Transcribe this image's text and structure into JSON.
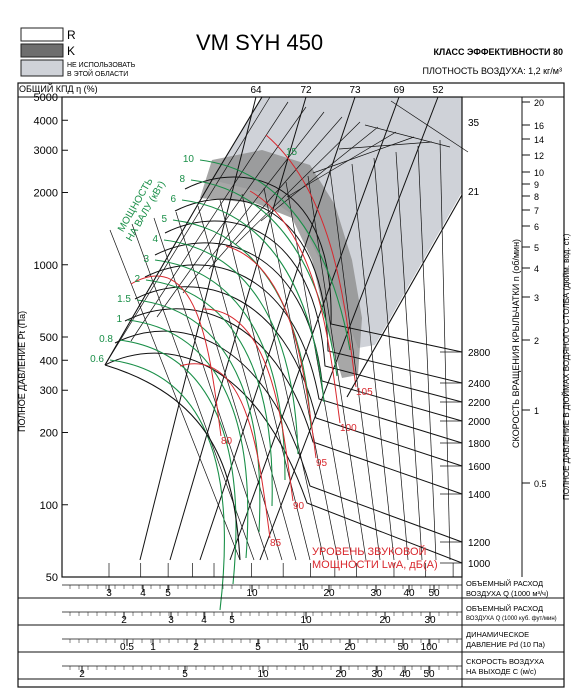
{
  "title": "VM SYH 450",
  "efficiency_class": "КЛАСС ЭФФЕКТИВНОСТИ 80",
  "air_density": "ПЛОТНОСТЬ ВОЗДУХА: 1,2 кг/м³",
  "legend": {
    "r_label": "R",
    "k_label": "K",
    "noarea_line1": "НЕ ИСПОЛЬЗОВАТЬ",
    "noarea_line2": "В ЭТОЙ ОБЛАСТИ",
    "colors": {
      "r_fill": "#ffffff",
      "k_fill": "#6e6e6e",
      "noarea_fill": "#cfd2d8"
    }
  },
  "labels": {
    "efficiency": "ОБЩИЙ КПД η (%)",
    "pressure_axis": "ПОЛНОЕ ДАВЛЕНИЕ Pt (Па)",
    "speed_axis": "СКОРОСТЬ ВРАЩЕНИЯ КРЫЛЬЧАТКИ n (об/мин)",
    "inch_axis": "ПОЛНОЕ ДАВЛЕНИЕ В ДЮЙМАХ ВОДЯНОГО СТОЛБА (дюйм. вод. ст.)",
    "power": "МОЩНОСТЬ НА ВАЛУ (кВт)",
    "power_line1": "МОЩНОСТЬ",
    "power_line2": "НА ВАЛУ (кВт)",
    "noise_line1": "УРОВЕНЬ ЗВУКОВОЙ",
    "noise_line2": "МОЩНОСТИ LwA, дБ(А)",
    "flow_m3h_line1": "ОБЪЕМНЫЙ РАСХОД",
    "flow_m3h_line2": "ВОЗДУХА Q (1000 м³/ч)",
    "flow_cfm_line1": "ОБЪЕМНЫЙ РАСХОД",
    "flow_cfm_line2": "ВОЗДУХА Q (1000 куб. фут/мин)",
    "dyn_line1": "ДИНАМИЧЕСКОЕ",
    "dyn_line2": "ДАВЛЕНИЕ Pd (10 Па)",
    "vel_line1": "СКОРОСТЬ ВОЗДУХА",
    "vel_line2": "НА ВЫХОДЕ C (м/с)"
  },
  "chart_data": {
    "type": "line",
    "x_scale": "log",
    "y_scale": "log",
    "x_label": "ОБЪЕМНЫЙ РАСХОД ВОЗДУХА Q (1000 м³/ч)",
    "y_label": "ПОЛНОЕ ДАВЛЕНИЕ Pt (Па)",
    "xlim": [
      2,
      60
    ],
    "ylim": [
      50,
      5000
    ],
    "y_ticks": [
      50,
      100,
      200,
      300,
      400,
      500,
      1000,
      2000,
      3000,
      4000,
      5000
    ],
    "y_tick_labels": [
      "50",
      "100",
      "200",
      "300",
      "400",
      "500",
      "1000",
      "2000",
      "3000",
      "4000",
      "5000"
    ],
    "x_ticks_m3h": [
      3,
      4,
      5,
      10,
      20,
      30,
      40,
      50
    ],
    "x_ticks_cfm": [
      2,
      3,
      4,
      5,
      10,
      20,
      30
    ],
    "x_ticks_dyn": [
      0.5,
      1,
      2,
      5,
      10,
      20,
      50,
      100
    ],
    "x_ticks_vel": [
      2,
      5,
      10,
      20,
      30,
      40,
      50
    ],
    "efficiency_ticks": [
      64,
      72,
      73,
      69,
      52
    ],
    "speed_ticks": [
      2800,
      2400,
      2200,
      2000,
      1800,
      1600,
      1400,
      1200,
      1000
    ],
    "speed_curve_ends": [
      35,
      21
    ],
    "inch_ticks": [
      20,
      16,
      14,
      12,
      10,
      9,
      8,
      7,
      6,
      5,
      4,
      3,
      2,
      1,
      0.5
    ],
    "power_labels": [
      10,
      8,
      6,
      5,
      4,
      3,
      2,
      1.5,
      1,
      0.8,
      0.6
    ],
    "power_label_15": 15,
    "noise_labels": [
      105,
      100,
      95,
      90,
      85,
      80
    ],
    "series_colors": {
      "power": "#1a8f48",
      "noise": "#d8282e",
      "speed": "#111111"
    }
  }
}
